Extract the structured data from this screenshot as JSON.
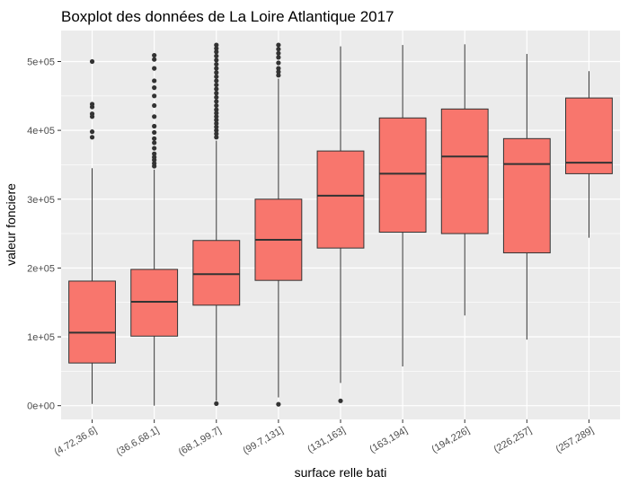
{
  "chart_data": {
    "type": "boxplot",
    "title": "Boxplot des données de La Loire Atlantique  2017",
    "xlabel": "surface relle bati",
    "ylabel": "valeur fonciere",
    "ylim": [
      -20000,
      545000
    ],
    "yticks": [
      0,
      100000,
      200000,
      300000,
      400000,
      500000
    ],
    "ytick_labels": [
      "0e+00",
      "1e+05",
      "2e+05",
      "3e+05",
      "4e+05",
      "5e+05"
    ],
    "categories": [
      "(4.72,36.6]",
      "(36.6,68.1]",
      "(68.1,99.7]",
      "(99.7,131]",
      "(131,163]",
      "(163,194]",
      "(194,226]",
      "(226,257]",
      "(257,289]"
    ],
    "grid": true,
    "colors": {
      "box_fill": "#F8766D",
      "panel": "#EBEBEB",
      "grid": "#FFFFFF",
      "line": "#333333"
    },
    "boxes": [
      {
        "category": "(4.72,36.6]",
        "whisker_low": 2500,
        "q1": 62000,
        "median": 106000,
        "q3": 181000,
        "whisker_high": 345000,
        "outliers": [
          390000,
          398000,
          420000,
          424000,
          434000,
          438000,
          500000
        ]
      },
      {
        "category": "(36.6,68.1]",
        "whisker_low": 0,
        "q1": 101000,
        "median": 151000,
        "q3": 198000,
        "whisker_high": 343000,
        "outliers": [
          348000,
          352000,
          357000,
          361000,
          366000,
          374000,
          382000,
          388000,
          397000,
          406000,
          420000,
          436000,
          450000,
          462000,
          472000,
          490000,
          503000,
          509000
        ]
      },
      {
        "category": "(68.1,99.7]",
        "whisker_low": 7000,
        "q1": 146000,
        "median": 191000,
        "q3": 240000,
        "whisker_high": 385000,
        "outliers": [
          3000,
          390000,
          395000,
          400000,
          405000,
          410000,
          415000,
          420000,
          425000,
          430000,
          436000,
          442000,
          448000,
          454000,
          460000,
          466000,
          472000,
          478000,
          484000,
          490000,
          496000,
          502000,
          508000,
          514000,
          519000,
          524000
        ]
      },
      {
        "category": "(99.7,131]",
        "whisker_low": 12000,
        "q1": 182000,
        "median": 241000,
        "q3": 300000,
        "whisker_high": 475000,
        "outliers": [
          2000,
          480000,
          485000,
          490000,
          498000,
          506000,
          512000,
          518000,
          524000
        ]
      },
      {
        "category": "(131,163]",
        "whisker_low": 33000,
        "q1": 229000,
        "median": 305000,
        "q3": 370000,
        "whisker_high": 522000,
        "outliers": [
          7000
        ]
      },
      {
        "category": "(163,194]",
        "whisker_low": 57000,
        "q1": 252000,
        "median": 337000,
        "q3": 418000,
        "whisker_high": 524000,
        "outliers": []
      },
      {
        "category": "(194,226]",
        "whisker_low": 131000,
        "q1": 250000,
        "median": 362000,
        "q3": 431000,
        "whisker_high": 525000,
        "outliers": []
      },
      {
        "category": "(226,257]",
        "whisker_low": 96000,
        "q1": 222000,
        "median": 351000,
        "q3": 388000,
        "whisker_high": 511000,
        "outliers": []
      },
      {
        "category": "(257,289]",
        "whisker_low": 244000,
        "q1": 337000,
        "median": 353000,
        "q3": 447000,
        "whisker_high": 486000,
        "outliers": []
      }
    ]
  }
}
